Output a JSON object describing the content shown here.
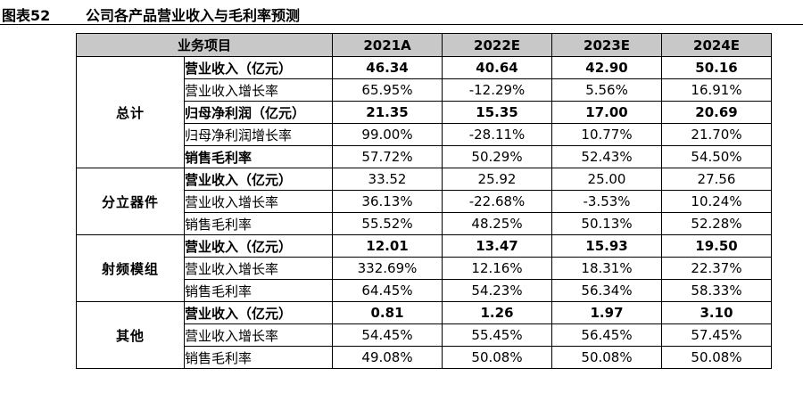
{
  "title": {
    "label": "图表52",
    "text": "公司各产品营业收入与毛利率预测"
  },
  "table": {
    "header": {
      "item": "业务项目",
      "years": [
        "2021A",
        "2022E",
        "2023E",
        "2024E"
      ]
    },
    "groups": [
      {
        "name": "总计",
        "rows": [
          {
            "metric": "营业收入（亿元）",
            "values": [
              "46.34",
              "40.64",
              "42.90",
              "50.16"
            ]
          },
          {
            "metric": "营业收入增长率",
            "values": [
              "65.95%",
              "-12.29%",
              "5.56%",
              "16.91%"
            ]
          },
          {
            "metric": "归母净利润（亿元）",
            "values": [
              "21.35",
              "15.35",
              "17.00",
              "20.69"
            ]
          },
          {
            "metric": "归母净利润增长率",
            "values": [
              "99.00%",
              "-28.11%",
              "10.77%",
              "21.70%"
            ]
          },
          {
            "metric": "销售毛利率",
            "values": [
              "57.72%",
              "50.29%",
              "52.43%",
              "54.50%"
            ]
          }
        ]
      },
      {
        "name": "分立器件",
        "rows": [
          {
            "metric": "营业收入（亿元）",
            "values": [
              "33.52",
              "25.92",
              "25.00",
              "27.56"
            ]
          },
          {
            "metric": "营业收入增长率",
            "values": [
              "36.13%",
              "-22.68%",
              "-3.53%",
              "10.24%"
            ]
          },
          {
            "metric": "销售毛利率",
            "values": [
              "55.52%",
              "48.25%",
              "50.13%",
              "52.28%"
            ]
          }
        ]
      },
      {
        "name": "射频模组",
        "rows": [
          {
            "metric": "营业收入（亿元）",
            "values": [
              "12.01",
              "13.47",
              "15.93",
              "19.50"
            ]
          },
          {
            "metric": "营业收入增长率",
            "values": [
              "332.69%",
              "12.16%",
              "18.31%",
              "22.37%"
            ]
          },
          {
            "metric": "销售毛利率",
            "values": [
              "64.45%",
              "54.23%",
              "56.34%",
              "58.33%"
            ]
          }
        ]
      },
      {
        "name": "其他",
        "rows": [
          {
            "metric": "营业收入（亿元）",
            "values": [
              "0.81",
              "1.26",
              "1.97",
              "3.10"
            ]
          },
          {
            "metric": "营业收入增长率",
            "values": [
              "54.45%",
              "55.45%",
              "56.45%",
              "57.45%"
            ]
          },
          {
            "metric": "销售毛利率",
            "values": [
              "49.08%",
              "50.08%",
              "50.08%",
              "50.08%"
            ]
          }
        ]
      }
    ]
  }
}
